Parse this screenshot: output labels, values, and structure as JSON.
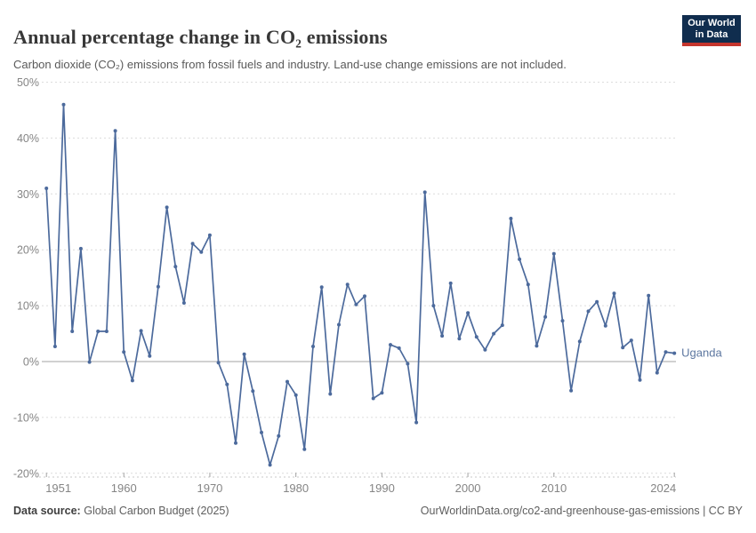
{
  "header": {
    "title": "Annual percentage change in CO₂ emissions",
    "subtitle": "Carbon dioxide (CO₂) emissions from fossil fuels and industry. Land-use change emissions are not included.",
    "logo": {
      "line1": "Our World",
      "line2": "in Data"
    }
  },
  "chart_data": {
    "type": "line",
    "title": "Annual percentage change in CO₂ emissions",
    "entity_label": "Uganda",
    "unit": "%",
    "x": [
      1951,
      1952,
      1953,
      1954,
      1955,
      1956,
      1957,
      1958,
      1959,
      1960,
      1961,
      1962,
      1963,
      1964,
      1965,
      1966,
      1967,
      1968,
      1969,
      1970,
      1971,
      1972,
      1973,
      1974,
      1975,
      1976,
      1977,
      1978,
      1979,
      1980,
      1981,
      1982,
      1983,
      1984,
      1985,
      1986,
      1987,
      1988,
      1989,
      1990,
      1991,
      1992,
      1993,
      1994,
      1995,
      1996,
      1997,
      1998,
      1999,
      2000,
      2001,
      2002,
      2003,
      2004,
      2005,
      2006,
      2007,
      2008,
      2009,
      2010,
      2011,
      2012,
      2013,
      2014,
      2015,
      2016,
      2017,
      2018,
      2019,
      2020,
      2021,
      2022,
      2023,
      2024
    ],
    "series": [
      {
        "name": "Uganda",
        "values": [
          31.0,
          2.7,
          46.0,
          5.4,
          20.2,
          -0.1,
          5.4,
          5.4,
          41.3,
          1.7,
          -3.4,
          5.5,
          1.0,
          13.4,
          27.6,
          17.0,
          10.5,
          21.1,
          19.6,
          22.6,
          -0.2,
          -4.1,
          -14.6,
          1.3,
          -5.3,
          -12.7,
          -18.5,
          -13.3,
          -3.6,
          -6.0,
          -15.7,
          2.7,
          13.3,
          -5.8,
          6.6,
          13.8,
          10.2,
          11.7,
          -6.6,
          -5.6,
          3.0,
          2.4,
          -0.4,
          -10.9,
          30.3,
          10.0,
          4.6,
          14.0,
          4.1,
          8.7,
          4.4,
          2.1,
          5.0,
          6.5,
          25.6,
          18.3,
          13.8,
          2.8,
          8.0,
          19.3,
          7.3,
          -5.2,
          3.6,
          9.0,
          10.7,
          6.4,
          12.2,
          2.5,
          3.8,
          -3.3,
          11.8,
          -2.0,
          1.7,
          1.5
        ]
      }
    ],
    "x_ticks": {
      "values": [
        1951,
        1960,
        1970,
        1980,
        1990,
        2000,
        2010,
        2024
      ],
      "labels": [
        "1951",
        "1960",
        "1970",
        "1980",
        "1990",
        "2000",
        "2010",
        "2024"
      ]
    },
    "y_ticks": {
      "values": [
        50,
        40,
        30,
        20,
        10,
        0,
        -10,
        -20
      ],
      "labels": [
        "50%",
        "40%",
        "30%",
        "20%",
        "10%",
        "0%",
        "-10%",
        "-20%"
      ]
    },
    "xlim": [
      1950,
      2025
    ],
    "ylim": [
      -20,
      50
    ],
    "grid": "horizontal dashed, solid zero line",
    "legend_position": "end-of-line label"
  },
  "colors": {
    "series": "#4c6a9c",
    "entity_label": "#5d77a0",
    "gridline": "#dcdcdc",
    "zero_line": "#a3a3a3",
    "axis_line": "#c9c9c9",
    "tick": "#a3a3a3",
    "axis_text": "#858585",
    "logo_bg": "#102d4e",
    "logo_accent": "#c5352d"
  },
  "footer": {
    "data_source_label": "Data source:",
    "data_source_value": "Global Carbon Budget (2025)",
    "link_text": "OurWorldinData.org/co2-and-greenhouse-gas-emissions | CC BY"
  }
}
